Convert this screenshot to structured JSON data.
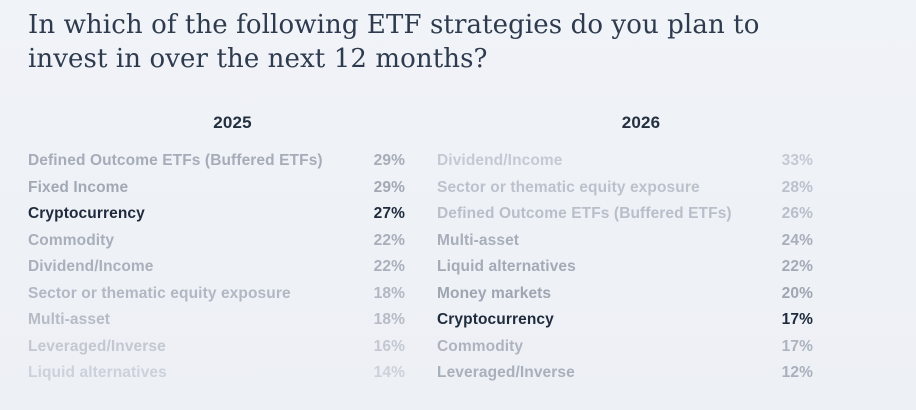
{
  "title": "In which of the following ETF strategies do you plan to invest in over the next 12 months?",
  "colors": {
    "background": "#edf0f5",
    "title_text": "#2e3b4e",
    "header_text": "#24303f",
    "highlight_text": "#1f2b3d"
  },
  "chart_data": [
    {
      "type": "table",
      "title": "2025",
      "categories": [
        "Defined Outcome ETFs (Buffered ETFs)",
        "Fixed Income",
        "Cryptocurrency",
        "Commodity",
        "Dividend/Income",
        "Sector or thematic equity exposure",
        "Multi-asset",
        "Leveraged/Inverse",
        "Liquid alternatives"
      ],
      "values": [
        29,
        29,
        27,
        22,
        22,
        18,
        18,
        16,
        14
      ],
      "unit": "%",
      "highlighted_category": "Cryptocurrency",
      "layout": "ranked list, label left, value right-aligned"
    },
    {
      "type": "table",
      "title": "2026",
      "categories": [
        "Dividend/Income",
        "Sector or thematic equity exposure",
        "Defined Outcome ETFs (Buffered ETFs)",
        "Multi-asset",
        "Liquid alternatives",
        "Money markets",
        "Cryptocurrency",
        "Commodity",
        "Leveraged/Inverse"
      ],
      "values": [
        33,
        28,
        26,
        24,
        22,
        20,
        17,
        17,
        12
      ],
      "unit": "%",
      "highlighted_category": "Cryptocurrency",
      "layout": "ranked list, label left, value right-aligned"
    }
  ],
  "columns": [
    {
      "header": "2025",
      "rows": [
        {
          "label": "Defined Outcome ETFs (Buffered ETFs)",
          "value": "29%",
          "shade": "#a6acb8",
          "highlight": false
        },
        {
          "label": "Fixed Income",
          "value": "29%",
          "shade": "#a2a9b5",
          "highlight": false
        },
        {
          "label": "Cryptocurrency",
          "value": "27%",
          "shade": "#1f2b3d",
          "highlight": true
        },
        {
          "label": "Commodity",
          "value": "22%",
          "shade": "#a8aeba",
          "highlight": false
        },
        {
          "label": "Dividend/Income",
          "value": "22%",
          "shade": "#aab0bc",
          "highlight": false
        },
        {
          "label": "Sector or thematic equity exposure",
          "value": "18%",
          "shade": "#b2b8c3",
          "highlight": false
        },
        {
          "label": "Multi-asset",
          "value": "18%",
          "shade": "#b6bbc6",
          "highlight": false
        },
        {
          "label": "Leveraged/Inverse",
          "value": "16%",
          "shade": "#c3c8d1",
          "highlight": false
        },
        {
          "label": "Liquid alternatives",
          "value": "14%",
          "shade": "#ccd1da",
          "highlight": false
        }
      ]
    },
    {
      "header": "2026",
      "rows": [
        {
          "label": "Dividend/Income",
          "value": "33%",
          "shade": "#c4c9d3",
          "highlight": false
        },
        {
          "label": "Sector or thematic equity exposure",
          "value": "28%",
          "shade": "#bcc2cc",
          "highlight": false
        },
        {
          "label": "Defined Outcome ETFs (Buffered ETFs)",
          "value": "26%",
          "shade": "#b9bfc9",
          "highlight": false
        },
        {
          "label": "Multi-asset",
          "value": "24%",
          "shade": "#a8aeba",
          "highlight": false
        },
        {
          "label": "Liquid alternatives",
          "value": "22%",
          "shade": "#a4abb7",
          "highlight": false
        },
        {
          "label": "Money markets",
          "value": "20%",
          "shade": "#9fa6b2",
          "highlight": false
        },
        {
          "label": "Cryptocurrency",
          "value": "17%",
          "shade": "#1f2b3d",
          "highlight": true
        },
        {
          "label": "Commodity",
          "value": "17%",
          "shade": "#aeb4bf",
          "highlight": false
        },
        {
          "label": "Leveraged/Inverse",
          "value": "12%",
          "shade": "#a9b0bc",
          "highlight": false
        }
      ]
    }
  ]
}
